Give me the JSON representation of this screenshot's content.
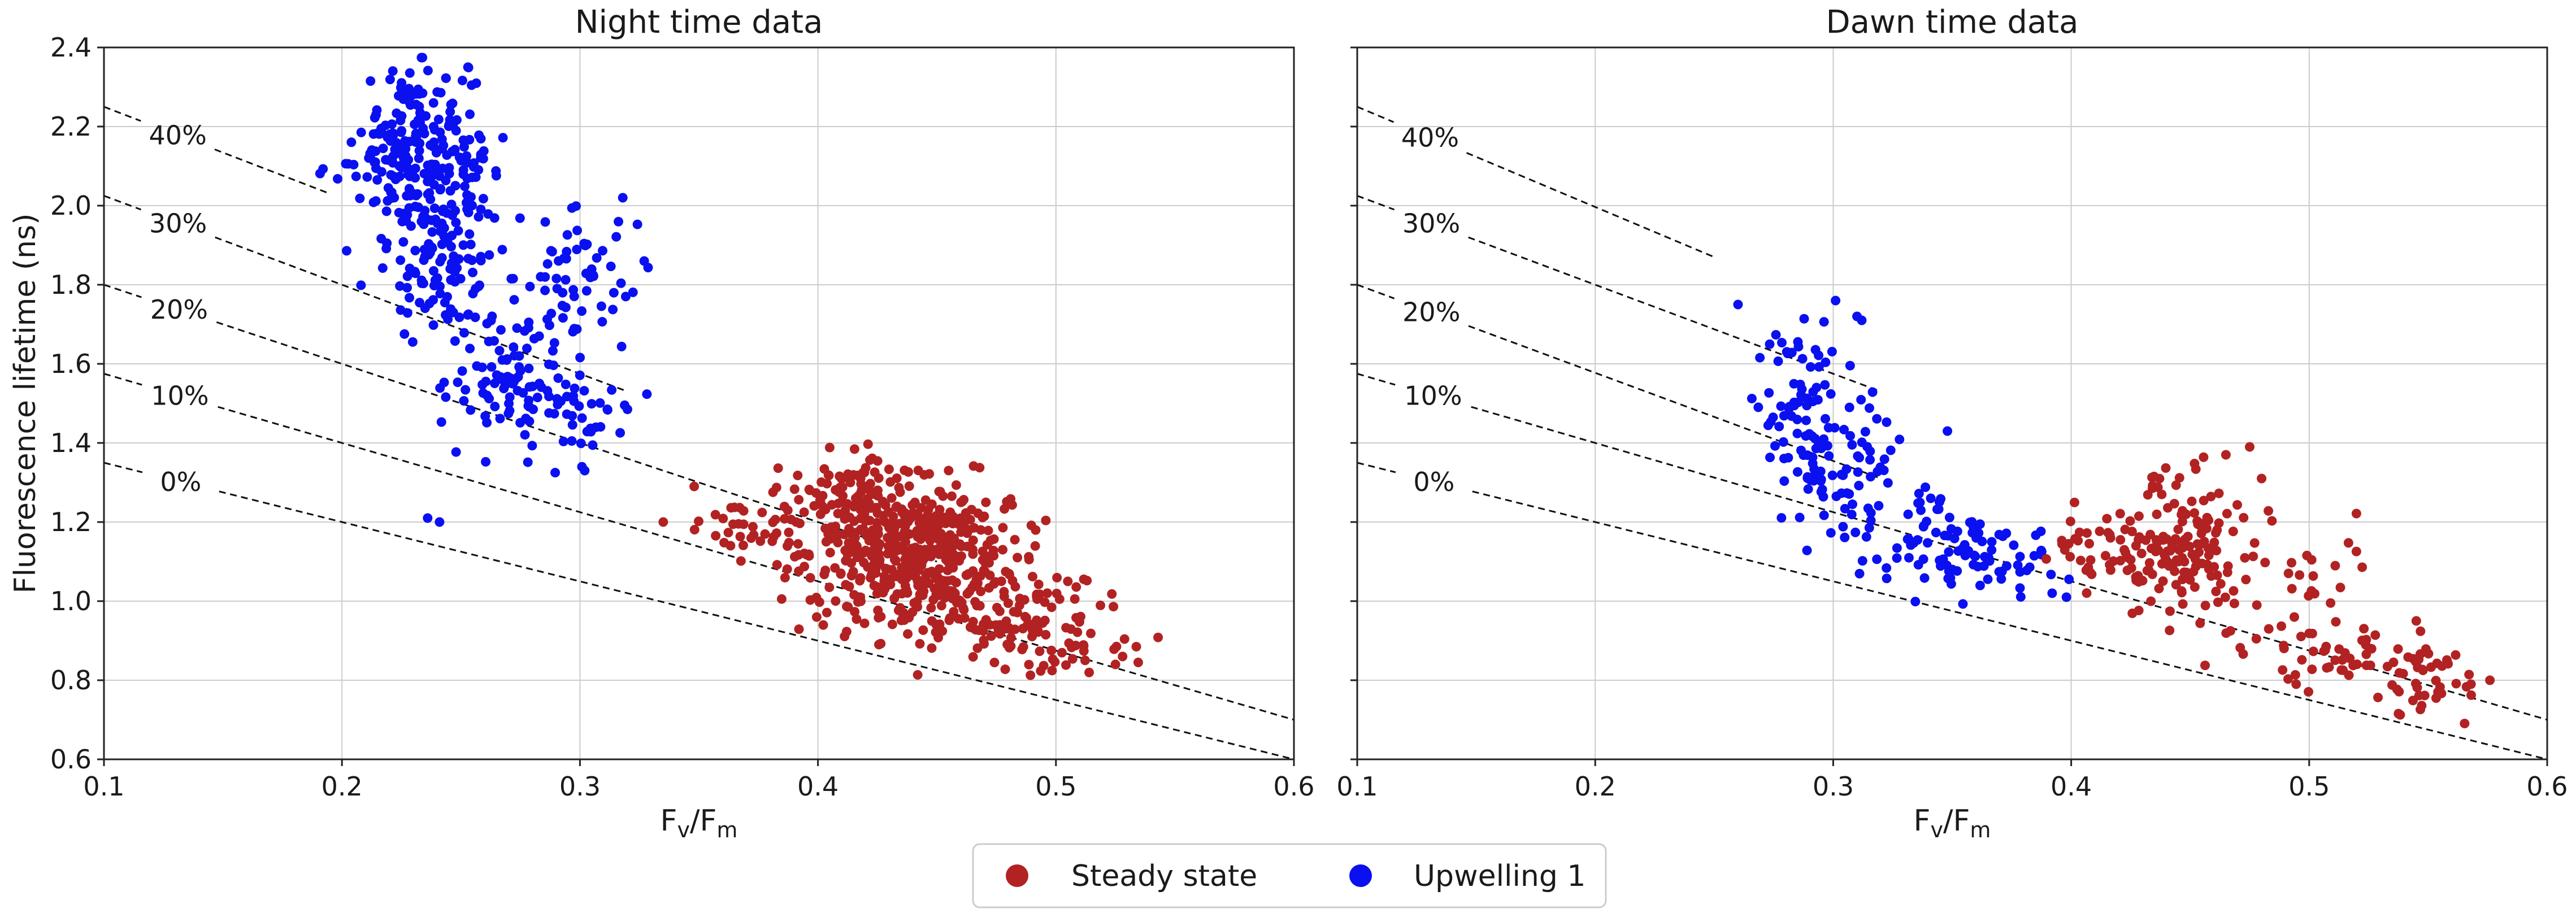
{
  "colors": {
    "steady_state": "#b22222",
    "upwelling_1": "#0a10f0",
    "grid": "#cccccc",
    "axes": "#222222",
    "dashed": "#111111"
  },
  "figure": {
    "ylabel": "Fluorescence lifetime (ns)",
    "xlabel_main": "F",
    "xlabel_sub_v": "v",
    "xlabel_slash": "/F",
    "xlabel_sub_m": "m"
  },
  "legend": {
    "placement": "bottom-center",
    "items": [
      {
        "label": "Steady state",
        "color_key": "steady_state"
      },
      {
        "label": "Upwelling 1",
        "color_key": "upwelling_1"
      }
    ]
  },
  "chart_data": [
    {
      "type": "scatter",
      "title": "Night time data",
      "xlim": [
        0.1,
        0.6
      ],
      "ylim": [
        0.6,
        2.4
      ],
      "xticks": [
        "0.1",
        "0.2",
        "0.3",
        "0.4",
        "0.5",
        "0.6"
      ],
      "yticks": [
        "0.6",
        "0.8",
        "1.0",
        "1.2",
        "1.4",
        "1.6",
        "1.8",
        "2.0",
        "2.2",
        "2.4"
      ],
      "grid": true,
      "reference_lines": [
        {
          "label": "0%",
          "x": [
            0.1,
            0.6
          ],
          "y": [
            1.35,
            0.6
          ],
          "label_at": [
            0.1,
            1.35
          ]
        },
        {
          "label": "10%",
          "x": [
            0.1,
            0.6
          ],
          "y": [
            1.575,
            0.7
          ],
          "label_at": [
            0.1,
            1.575
          ]
        },
        {
          "label": "20%",
          "x": [
            0.1,
            0.45
          ],
          "y": [
            1.8,
            1.1
          ],
          "label_at": [
            0.1,
            1.8
          ]
        },
        {
          "label": "30%",
          "x": [
            0.1,
            0.32
          ],
          "y": [
            2.025,
            1.53
          ],
          "label_at": [
            0.1,
            2.025
          ]
        },
        {
          "label": "40%",
          "x": [
            0.1,
            0.195
          ],
          "y": [
            2.25,
            2.03
          ],
          "label_at": [
            0.1,
            2.25
          ]
        }
      ],
      "series": [
        {
          "name": "Upwelling 1",
          "color_key": "upwelling_1",
          "clusters": [
            {
              "n": 180,
              "cx": 0.228,
              "cy": 2.13,
              "sx": 0.01,
              "sy": 0.12
            },
            {
              "n": 60,
              "cx": 0.25,
              "cy": 2.12,
              "sx": 0.008,
              "sy": 0.09
            },
            {
              "n": 100,
              "cx": 0.245,
              "cy": 1.86,
              "sx": 0.012,
              "sy": 0.1
            },
            {
              "n": 90,
              "cx": 0.272,
              "cy": 1.56,
              "sx": 0.013,
              "sy": 0.08
            },
            {
              "n": 60,
              "cx": 0.298,
              "cy": 1.82,
              "sx": 0.012,
              "sy": 0.08
            },
            {
              "n": 35,
              "cx": 0.3,
              "cy": 1.47,
              "sx": 0.012,
              "sy": 0.06
            },
            {
              "n": 14,
              "cx": 0.205,
              "cy": 2.1,
              "sx": 0.012,
              "sy": 0.03
            }
          ],
          "extra_points": [
            [
              0.236,
              1.21
            ],
            [
              0.241,
              1.2
            ],
            [
              0.318,
              2.02
            ],
            [
              0.327,
              1.86
            ],
            [
              0.302,
              1.33
            ]
          ]
        },
        {
          "name": "Steady state",
          "color_key": "steady_state",
          "clusters": [
            {
              "n": 480,
              "cx": 0.438,
              "cy": 1.13,
              "sx": 0.022,
              "sy": 0.08
            },
            {
              "n": 120,
              "cx": 0.478,
              "cy": 0.96,
              "sx": 0.02,
              "sy": 0.05
            },
            {
              "n": 70,
              "cx": 0.41,
              "cy": 1.28,
              "sx": 0.015,
              "sy": 0.05
            },
            {
              "n": 40,
              "cx": 0.375,
              "cy": 1.19,
              "sx": 0.015,
              "sy": 0.05
            },
            {
              "n": 25,
              "cx": 0.51,
              "cy": 0.87,
              "sx": 0.012,
              "sy": 0.03
            }
          ],
          "extra_points": [
            [
              0.335,
              1.2
            ],
            [
              0.348,
              1.29
            ],
            [
              0.525,
              0.84
            ],
            [
              0.528,
              0.86
            ],
            [
              0.505,
              1.05
            ]
          ]
        }
      ]
    },
    {
      "type": "scatter",
      "title": "Dawn time data",
      "xlim": [
        0.1,
        0.6
      ],
      "ylim": [
        0.6,
        2.4
      ],
      "xticks": [
        "0.1",
        "0.2",
        "0.3",
        "0.4",
        "0.5",
        "0.6"
      ],
      "yticks": [
        "0.6",
        "0.8",
        "1.0",
        "1.2",
        "1.4",
        "1.6",
        "1.8",
        "2.0",
        "2.2",
        "2.4"
      ],
      "grid": true,
      "reference_lines": [
        {
          "label": "0%",
          "x": [
            0.1,
            0.6
          ],
          "y": [
            1.35,
            0.6
          ],
          "label_at": [
            0.1,
            1.35
          ]
        },
        {
          "label": "10%",
          "x": [
            0.1,
            0.6
          ],
          "y": [
            1.575,
            0.7
          ],
          "label_at": [
            0.1,
            1.575
          ]
        },
        {
          "label": "20%",
          "x": [
            0.1,
            0.32
          ],
          "y": [
            1.8,
            1.31
          ],
          "label_at": [
            0.1,
            1.8
          ]
        },
        {
          "label": "30%",
          "x": [
            0.1,
            0.32
          ],
          "y": [
            2.025,
            1.53
          ],
          "label_at": [
            0.1,
            2.025
          ]
        },
        {
          "label": "40%",
          "x": [
            0.1,
            0.25
          ],
          "y": [
            2.25,
            1.87
          ],
          "label_at": [
            0.1,
            2.25
          ]
        }
      ],
      "series": [
        {
          "name": "Upwelling 1",
          "color_key": "upwelling_1",
          "clusters": [
            {
              "n": 60,
              "cx": 0.29,
              "cy": 1.5,
              "sx": 0.012,
              "sy": 0.1
            },
            {
              "n": 55,
              "cx": 0.305,
              "cy": 1.33,
              "sx": 0.012,
              "sy": 0.07
            },
            {
              "n": 70,
              "cx": 0.34,
              "cy": 1.16,
              "sx": 0.02,
              "sy": 0.05
            },
            {
              "n": 40,
              "cx": 0.372,
              "cy": 1.1,
              "sx": 0.015,
              "sy": 0.04
            },
            {
              "n": 14,
              "cx": 0.28,
              "cy": 1.64,
              "sx": 0.007,
              "sy": 0.03
            }
          ],
          "extra_points": [
            [
              0.26,
              1.75
            ],
            [
              0.301,
              1.76
            ],
            [
              0.31,
              1.72
            ],
            [
              0.312,
              1.71
            ],
            [
              0.348,
              1.43
            ],
            [
              0.392,
              1.02
            ],
            [
              0.398,
              1.01
            ]
          ]
        },
        {
          "name": "Steady state",
          "color_key": "steady_state",
          "clusters": [
            {
              "n": 120,
              "cx": 0.445,
              "cy": 1.13,
              "sx": 0.012,
              "sy": 0.07
            },
            {
              "n": 40,
              "cx": 0.413,
              "cy": 1.13,
              "sx": 0.01,
              "sy": 0.05
            },
            {
              "n": 50,
              "cx": 0.51,
              "cy": 0.86,
              "sx": 0.022,
              "sy": 0.05
            },
            {
              "n": 40,
              "cx": 0.55,
              "cy": 0.8,
              "sx": 0.01,
              "sy": 0.04
            },
            {
              "n": 30,
              "cx": 0.49,
              "cy": 1.05,
              "sx": 0.02,
              "sy": 0.07
            },
            {
              "n": 15,
              "cx": 0.44,
              "cy": 1.3,
              "sx": 0.01,
              "sy": 0.04
            }
          ],
          "extra_points": [
            [
              0.465,
              1.37
            ],
            [
              0.475,
              1.39
            ],
            [
              0.48,
              1.31
            ],
            [
              0.545,
              0.95
            ],
            [
              0.568,
              0.79
            ],
            [
              0.478,
              0.99
            ]
          ]
        }
      ]
    }
  ]
}
